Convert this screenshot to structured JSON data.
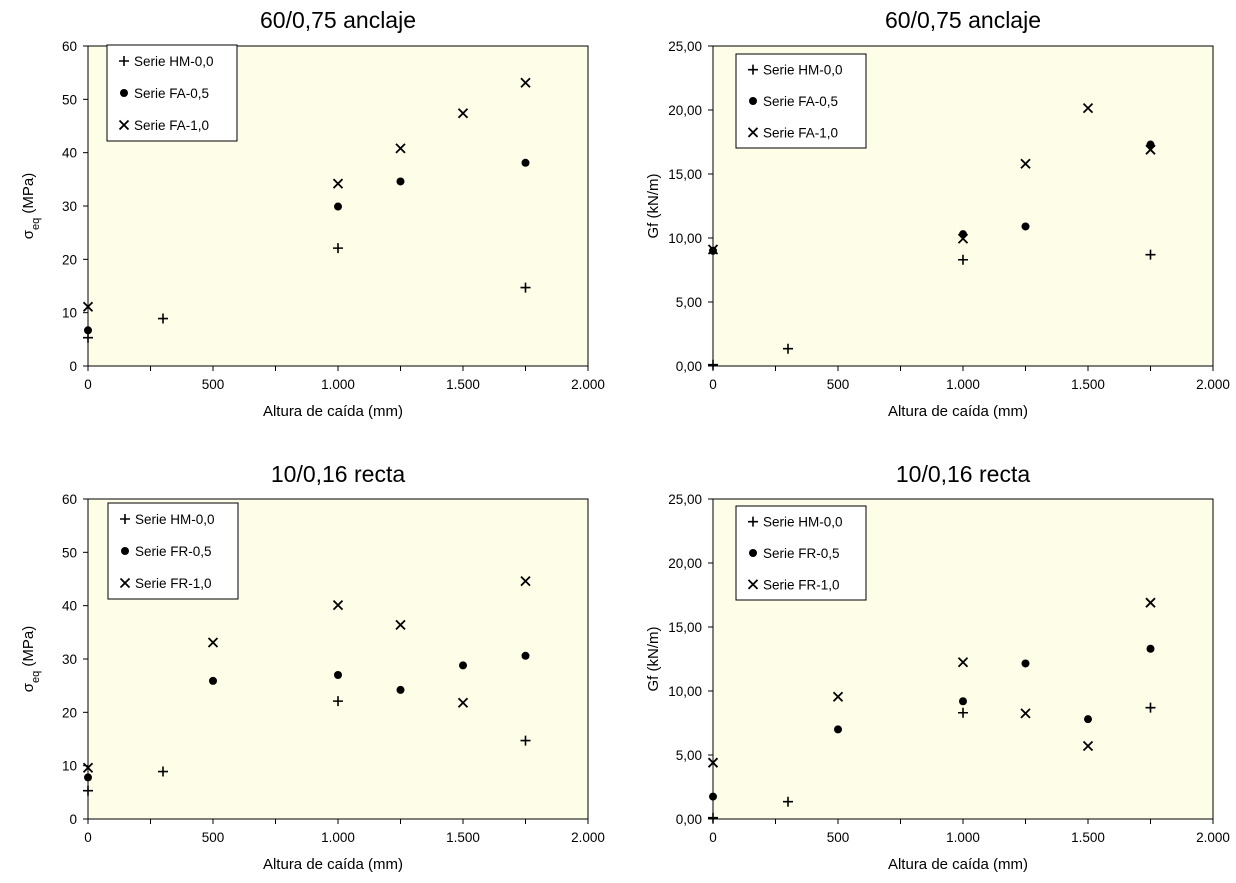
{
  "chart_data": [
    {
      "type": "scatter",
      "title": "60/0,75 anclaje",
      "xlabel": "Altura de caída (mm)",
      "ylabel": "σ",
      "ylabel_sub": "eq",
      "ylabel_unit": " (MPa)",
      "xlim": [
        0,
        2000
      ],
      "ylim": [
        0,
        60
      ],
      "xticks": [
        0,
        500,
        1000,
        1500,
        2000
      ],
      "xtick_labels": [
        "0",
        "500",
        "1.000",
        "1.500",
        "2.000"
      ],
      "yticks": [
        0,
        10,
        20,
        30,
        40,
        50,
        60
      ],
      "ytick_labels": [
        "0",
        "10",
        "20",
        "30",
        "40",
        "50",
        "60"
      ],
      "legend_position": "top-left",
      "series": [
        {
          "name": "Serie HM-0,0",
          "marker": "plus",
          "x": [
            0,
            300,
            1000,
            1750
          ],
          "y": [
            5.3,
            8.9,
            22.1,
            14.7
          ]
        },
        {
          "name": "Serie FA-0,5",
          "marker": "circle",
          "x": [
            0,
            1000,
            1250,
            1750
          ],
          "y": [
            6.7,
            29.9,
            34.6,
            38.1
          ]
        },
        {
          "name": "Serie FA-1,0",
          "marker": "cross",
          "x": [
            0,
            1000,
            1250,
            1500,
            1750
          ],
          "y": [
            11.1,
            34.2,
            40.8,
            47.4,
            53.1
          ]
        }
      ]
    },
    {
      "type": "scatter",
      "title": "60/0,75 anclaje",
      "xlabel": "Altura de caída (mm)",
      "ylabel": "Gf (kN/m)",
      "xlim": [
        0,
        2000
      ],
      "ylim": [
        0,
        25
      ],
      "xticks": [
        0,
        500,
        1000,
        1500,
        2000
      ],
      "xtick_labels": [
        "0",
        "500",
        "1.000",
        "1.500",
        "2.000"
      ],
      "yticks": [
        0,
        5,
        10,
        15,
        20,
        25
      ],
      "ytick_labels": [
        "0,00",
        "5,00",
        "10,00",
        "15,00",
        "20,00",
        "25,00"
      ],
      "legend_position": "top-left",
      "series": [
        {
          "name": "Serie HM-0,0",
          "marker": "plus",
          "x": [
            0,
            300,
            1000,
            1750
          ],
          "y": [
            0.1,
            1.35,
            8.3,
            8.7
          ]
        },
        {
          "name": "Serie FA-0,5",
          "marker": "circle",
          "x": [
            0,
            1000,
            1250,
            1750
          ],
          "y": [
            9.0,
            10.3,
            10.9,
            17.3
          ]
        },
        {
          "name": "Serie FA-1,0",
          "marker": "cross",
          "x": [
            0,
            1000,
            1250,
            1500,
            1750
          ],
          "y": [
            9.1,
            9.95,
            15.8,
            20.15,
            16.9
          ]
        }
      ]
    },
    {
      "type": "scatter",
      "title": "10/0,16 recta",
      "xlabel": "Altura de caída (mm)",
      "ylabel": "σ",
      "ylabel_sub": "eq",
      "ylabel_unit": " (MPa)",
      "xlim": [
        0,
        2000
      ],
      "ylim": [
        0,
        60
      ],
      "xticks": [
        0,
        500,
        1000,
        1500,
        2000
      ],
      "xtick_labels": [
        "0",
        "500",
        "1.000",
        "1.500",
        "2.000"
      ],
      "yticks": [
        0,
        10,
        20,
        30,
        40,
        50,
        60
      ],
      "ytick_labels": [
        "0",
        "10",
        "20",
        "30",
        "40",
        "50",
        "60"
      ],
      "legend_position": "top-left",
      "series": [
        {
          "name": "Serie HM-0,0",
          "marker": "plus",
          "x": [
            0,
            300,
            1000,
            1750
          ],
          "y": [
            5.3,
            8.9,
            22.1,
            14.7
          ]
        },
        {
          "name": "Serie FR-0,5",
          "marker": "circle",
          "x": [
            0,
            500,
            1000,
            1250,
            1500,
            1750
          ],
          "y": [
            7.8,
            25.9,
            27.0,
            24.2,
            28.8,
            30.6
          ]
        },
        {
          "name": "Serie FR-1,0",
          "marker": "cross",
          "x": [
            0,
            500,
            1000,
            1250,
            1500,
            1750
          ],
          "y": [
            9.6,
            33.1,
            40.1,
            36.4,
            21.8,
            44.6
          ]
        }
      ]
    },
    {
      "type": "scatter",
      "title": "10/0,16 recta",
      "xlabel": "Altura de caída (mm)",
      "ylabel": "Gf (kN/m)",
      "xlim": [
        0,
        2000
      ],
      "ylim": [
        0,
        25
      ],
      "xticks": [
        0,
        500,
        1000,
        1500,
        2000
      ],
      "xtick_labels": [
        "0",
        "500",
        "1.000",
        "1.500",
        "2.000"
      ],
      "yticks": [
        0,
        5,
        10,
        15,
        20,
        25
      ],
      "ytick_labels": [
        "0,00",
        "5,00",
        "10,00",
        "15,00",
        "20,00",
        "25,00"
      ],
      "legend_position": "top-left",
      "series": [
        {
          "name": "Serie HM-0,0",
          "marker": "plus",
          "x": [
            0,
            300,
            1000,
            1750
          ],
          "y": [
            0.1,
            1.35,
            8.3,
            8.7
          ]
        },
        {
          "name": "Serie FR-0,5",
          "marker": "circle",
          "x": [
            0,
            500,
            1000,
            1250,
            1500,
            1750
          ],
          "y": [
            1.75,
            7.0,
            9.2,
            12.15,
            7.8,
            13.3
          ]
        },
        {
          "name": "Serie FR-1,0",
          "marker": "cross",
          "x": [
            0,
            500,
            1000,
            1250,
            1500,
            1750
          ],
          "y": [
            4.4,
            9.55,
            12.25,
            8.25,
            5.7,
            16.9
          ]
        }
      ]
    }
  ],
  "colors": {
    "plot_background": "#fdfde8",
    "frame": "#000000",
    "marker": "#000000",
    "page_background": "#ffffff"
  }
}
